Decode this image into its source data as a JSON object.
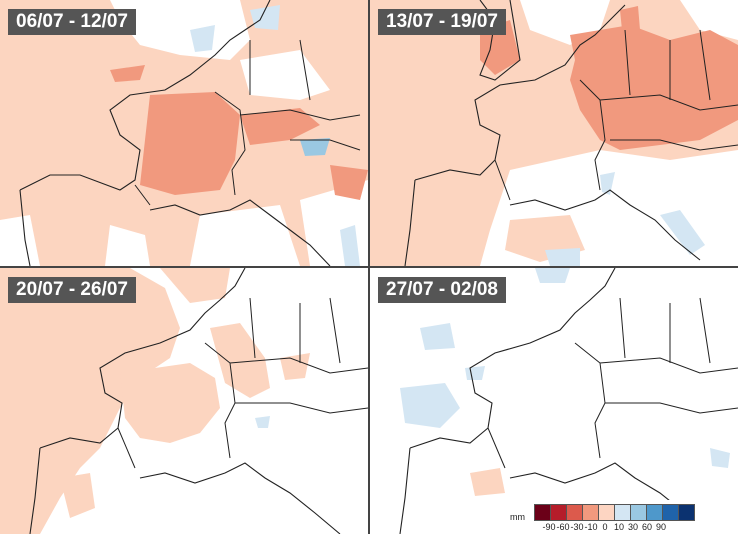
{
  "panels": [
    {
      "label": "06/07 - 12/07"
    },
    {
      "label": "13/07 - 19/07"
    },
    {
      "label": "20/07 - 26/07"
    },
    {
      "label": "27/07 - 02/08"
    }
  ],
  "legend": {
    "unit": "mm",
    "ticks": [
      "-90",
      "-60",
      "-30",
      "-10",
      "0",
      "10",
      "30",
      "60",
      "90"
    ],
    "colors": [
      "#6b0018",
      "#b51d2a",
      "#dc5a4c",
      "#f1997e",
      "#fdd5c2",
      "#d4e6f3",
      "#9ac8e2",
      "#4e98cb",
      "#1f63aa",
      "#0b3270"
    ]
  },
  "colors": {
    "light_red": "#fcd5c0",
    "mid_red": "#f1997e",
    "light_blue": "#d4e6f3",
    "mid_blue": "#9ac8e2"
  }
}
